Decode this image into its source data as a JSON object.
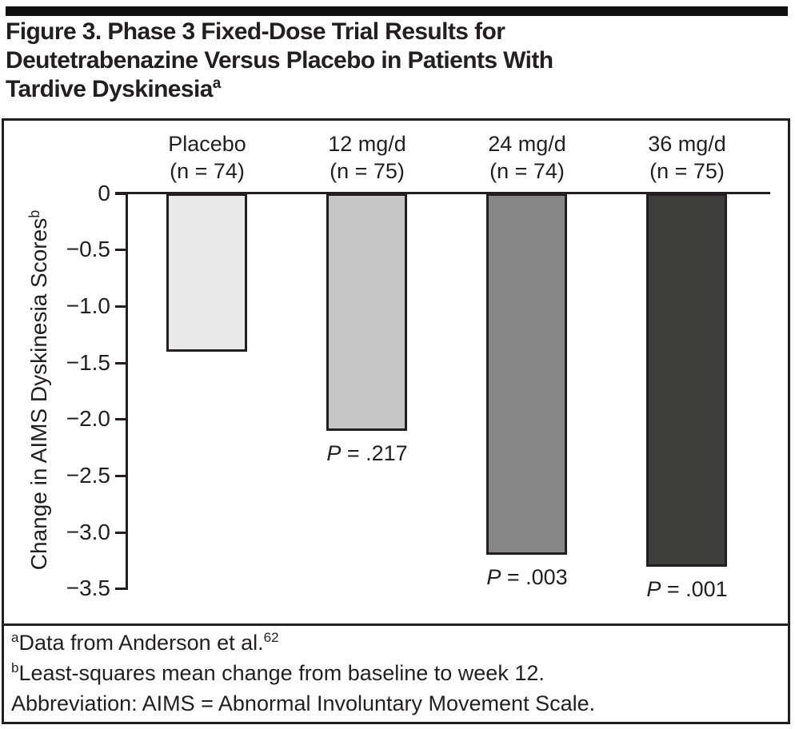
{
  "header": {
    "title_lines": [
      "Figure 3. Phase 3 Fixed-Dose Trial Results for",
      "Deutetrabenazine Versus Placebo in Patients With",
      "Tardive Dyskinesia"
    ],
    "title_superscript": "a"
  },
  "chart_data": {
    "type": "bar",
    "title": "Figure 3. Phase 3 Fixed-Dose Trial Results for Deutetrabenazine Versus Placebo in Patients With Tardive Dyskinesia",
    "xlabel": "",
    "ylabel": "Change in AIMS Dyskinesia Scores",
    "ylabel_superscript": "b",
    "ylim": [
      0,
      -3.5
    ],
    "grid": false,
    "legend_position": "none",
    "yticks": [
      "0",
      "−0.5",
      "−1.0",
      "−1.5",
      "−2.0",
      "−2.5",
      "−3.0",
      "−3.5"
    ],
    "ytick_values": [
      0,
      -0.5,
      -1.0,
      -1.5,
      -2.0,
      -2.5,
      -3.0,
      -3.5
    ],
    "categories": [
      "Placebo",
      "12 mg/d",
      "24 mg/d",
      "36 mg/d"
    ],
    "values": [
      -1.4,
      -2.1,
      -3.2,
      -3.3
    ],
    "groups": [
      {
        "label": "Placebo",
        "n": "(n = 74)",
        "value": -1.4,
        "p": null,
        "color": "#e9e9e9"
      },
      {
        "label": "12 mg/d",
        "n": "(n = 75)",
        "value": -2.1,
        "p": {
          "prefix": "P",
          "rest": " = .217"
        },
        "color": "#c6c6c6"
      },
      {
        "label": "24 mg/d",
        "n": "(n = 74)",
        "value": -3.2,
        "p": {
          "prefix": "P",
          "rest": " = .003"
        },
        "color": "#878787"
      },
      {
        "label": "36 mg/d",
        "n": "(n = 75)",
        "value": -3.3,
        "p": {
          "prefix": "P",
          "rest": " = .001"
        },
        "color": "#3d3d3b"
      }
    ]
  },
  "footnotes": [
    {
      "sup": "a",
      "text": "Data from Anderson et al.",
      "trail_sup": "62"
    },
    {
      "sup": "b",
      "text": "Least-squares mean change from baseline to week 12.",
      "trail_sup": ""
    },
    {
      "sup": "",
      "text": "Abbreviation: AIMS = Abnormal Involuntary Movement Scale.",
      "trail_sup": ""
    }
  ],
  "colors": {
    "text": "#231f20",
    "rule": "#111111",
    "bar_border": "#231f20"
  }
}
